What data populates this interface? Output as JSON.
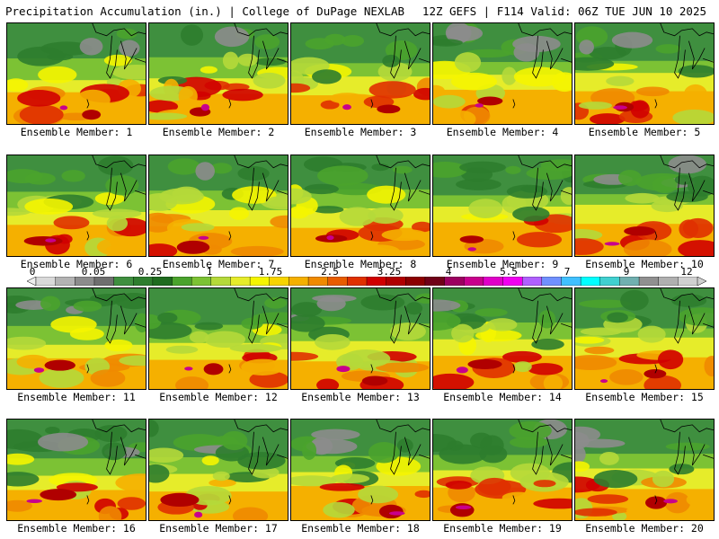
{
  "header": {
    "left_title": "Precipitation Accumulation (in.) | College of DuPage NEXLAB",
    "right_title": "12Z GEFS | F114 Valid: 06Z TUE JUN 10 2025"
  },
  "colorbar": {
    "tick_labels": [
      "0",
      "0.05",
      "0.25",
      "1",
      "1.75",
      "2.5",
      "3.25",
      "4",
      "5.5",
      "7",
      "9",
      "12"
    ],
    "colors": [
      "#d9d9d9",
      "#b3b3b3",
      "#8c8c8c",
      "#6f6f6f",
      "#3f8f3f",
      "#2e7d2e",
      "#1f6b1f",
      "#4aa32c",
      "#7cc234",
      "#b5d93a",
      "#e6ec2a",
      "#f5f500",
      "#f7d400",
      "#f5b000",
      "#f08a00",
      "#e85c00",
      "#e03000",
      "#d00000",
      "#b00000",
      "#8c0000",
      "#700018",
      "#9c0060",
      "#c8008c",
      "#e000c8",
      "#f000f0",
      "#b060ff",
      "#7090ff",
      "#40c0ff",
      "#00ffff",
      "#40d0d0",
      "#70b0b0",
      "#909090",
      "#b0b0b0",
      "#d0d0d0"
    ]
  },
  "panels": [
    {
      "label": "Ensemble Member: 1"
    },
    {
      "label": "Ensemble Member: 2"
    },
    {
      "label": "Ensemble Member: 3"
    },
    {
      "label": "Ensemble Member: 4"
    },
    {
      "label": "Ensemble Member: 5"
    },
    {
      "label": "Ensemble Member: 6"
    },
    {
      "label": "Ensemble Member: 7"
    },
    {
      "label": "Ensemble Member: 8"
    },
    {
      "label": "Ensemble Member: 9"
    },
    {
      "label": "Ensemble Member: 10"
    },
    {
      "label": "Ensemble Member: 11"
    },
    {
      "label": "Ensemble Member: 12"
    },
    {
      "label": "Ensemble Member: 13"
    },
    {
      "label": "Ensemble Member: 14"
    },
    {
      "label": "Ensemble Member: 15"
    },
    {
      "label": "Ensemble Member: 16"
    },
    {
      "label": "Ensemble Member: 17"
    },
    {
      "label": "Ensemble Member: 18"
    },
    {
      "label": "Ensemble Member: 19"
    },
    {
      "label": "Ensemble Member: 20"
    }
  ]
}
